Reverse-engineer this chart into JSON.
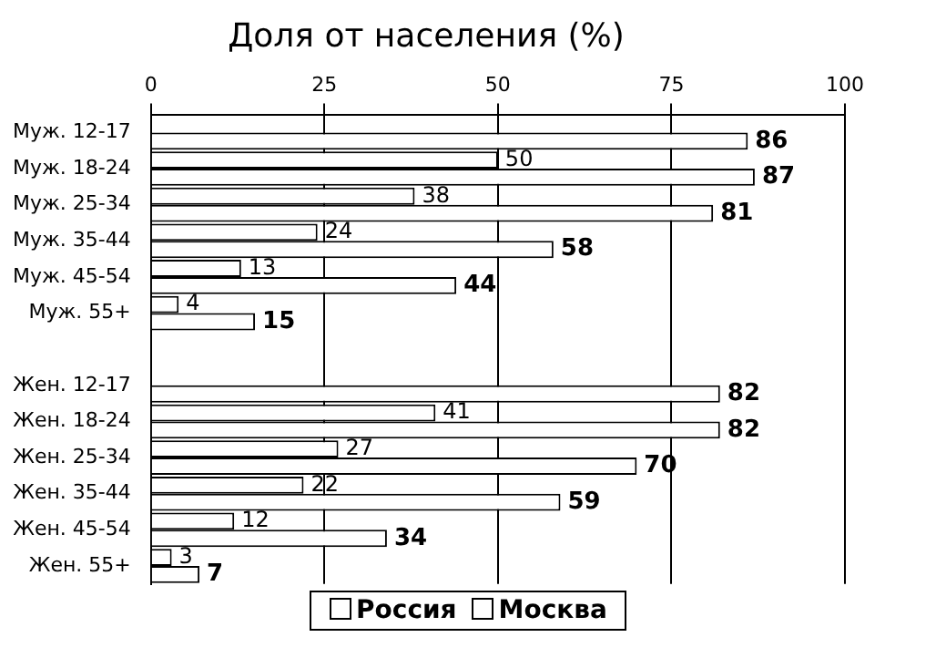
{
  "chart_data": {
    "type": "bar",
    "orientation": "horizontal",
    "title": "Доля от населения (%)",
    "categories": [
      "Муж. 12-17",
      "Муж. 18-24",
      "Муж. 25-34",
      "Муж. 35-44",
      "Муж. 45-54",
      "Муж. 55+",
      null,
      "Жен. 12-17",
      "Жен. 18-24",
      "Жен. 25-34",
      "Жен. 35-44",
      "Жен. 45-54",
      "Жен. 55+"
    ],
    "series": [
      {
        "name": "Москва",
        "color": "#ffffff",
        "values": [
          null,
          50,
          38,
          24,
          13,
          4,
          null,
          null,
          41,
          27,
          22,
          12,
          3
        ]
      },
      {
        "name": "Россия",
        "color": "#ffffff",
        "values": [
          86,
          87,
          81,
          58,
          44,
          15,
          null,
          82,
          82,
          70,
          59,
          34,
          7
        ]
      }
    ],
    "xlim": [
      0,
      100
    ],
    "xticks": [
      0,
      25,
      50,
      75,
      100
    ],
    "grid": "x",
    "legend": "bottom",
    "data_labels": true
  }
}
